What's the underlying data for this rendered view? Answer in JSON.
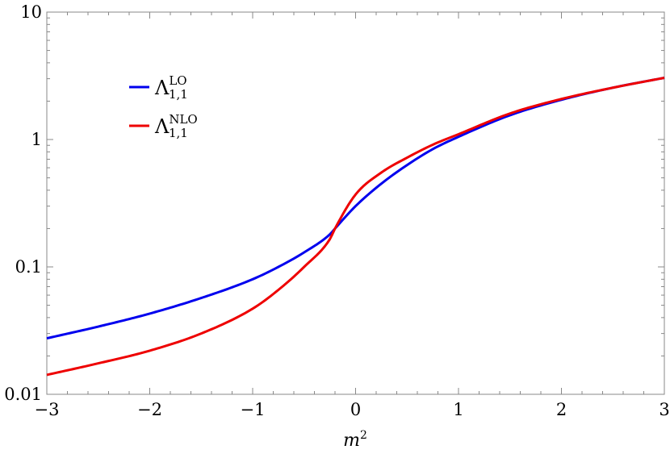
{
  "chart_data": {
    "type": "line",
    "title": "",
    "xlabel": "m",
    "xlabel_superscript": "2",
    "ylabel": "",
    "xlim": [
      -3,
      3
    ],
    "ylim": [
      0.01,
      10
    ],
    "yscale": "log",
    "x_ticks": [
      -3,
      -2,
      -1,
      0,
      1,
      2,
      3
    ],
    "x_tick_labels": [
      "−3",
      "−2",
      "−1",
      "0",
      "1",
      "2",
      "3"
    ],
    "y_ticks": [
      0.01,
      0.1,
      1,
      10
    ],
    "y_tick_labels": [
      "0.01",
      "0.1",
      "1",
      "10"
    ],
    "grid": false,
    "legend_position": "upper-left",
    "series": [
      {
        "name": "Λ^LO_1,1",
        "symbol": "Λ",
        "superscript": "LO",
        "subscript": "1,1",
        "color": "#0000ee",
        "x": [
          -3,
          -2.5,
          -2,
          -1.5,
          -1,
          -0.75,
          -0.5,
          -0.25,
          -0.2,
          0,
          0.25,
          0.5,
          0.75,
          1,
          1.5,
          2,
          2.5,
          3
        ],
        "y": [
          0.0275,
          0.034,
          0.043,
          0.057,
          0.08,
          0.1,
          0.13,
          0.18,
          0.2,
          0.3,
          0.45,
          0.63,
          0.84,
          1.05,
          1.55,
          2.05,
          2.55,
          3.05
        ]
      },
      {
        "name": "Λ^NLO_1,1",
        "symbol": "Λ",
        "superscript": "NLO",
        "subscript": "1,1",
        "color": "#ee0000",
        "x": [
          -3,
          -2.5,
          -2,
          -1.5,
          -1,
          -0.75,
          -0.5,
          -0.25,
          -0.2,
          0,
          0.25,
          0.5,
          0.75,
          1,
          1.5,
          2,
          2.5,
          3
        ],
        "y": [
          0.0142,
          0.0175,
          0.022,
          0.03,
          0.047,
          0.066,
          0.1,
          0.165,
          0.2,
          0.37,
          0.55,
          0.72,
          0.91,
          1.1,
          1.6,
          2.08,
          2.55,
          3.05
        ]
      }
    ]
  }
}
